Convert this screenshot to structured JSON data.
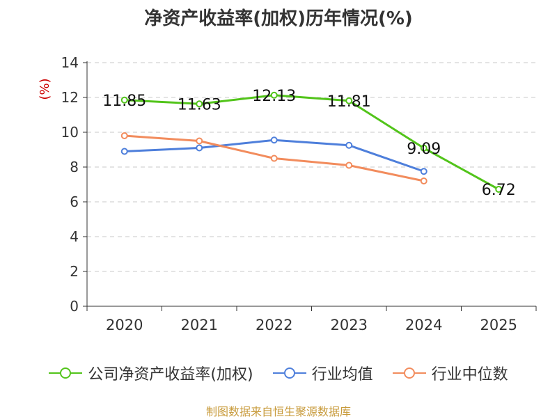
{
  "title": "净资产收益率(加权)历年情况(%)",
  "source": "制图数据来自恒生聚源数据库",
  "chart_data": {
    "type": "line",
    "title": "净资产收益率(加权)历年情况(%)",
    "ylabel": "(%)",
    "xlabel": "",
    "categories": [
      "2020",
      "2021",
      "2022",
      "2023",
      "2024",
      "2025"
    ],
    "ylim": [
      0,
      14
    ],
    "yticks": [
      0,
      2,
      4,
      6,
      8,
      10,
      12,
      14
    ],
    "grid": true,
    "legend_position": "bottom",
    "series": [
      {
        "name": "公司净资产收益率(加权)",
        "color": "#52c41a",
        "values": [
          11.85,
          11.63,
          12.13,
          11.81,
          9.09,
          6.72
        ],
        "labels": [
          "11.85",
          "11.63",
          "12.13",
          "11.81",
          "9.09",
          "6.72"
        ]
      },
      {
        "name": "行业均值",
        "color": "#4e7fdb",
        "values": [
          8.9,
          9.1,
          9.55,
          9.25,
          7.75,
          null
        ]
      },
      {
        "name": "行业中位数",
        "color": "#f28c5d",
        "values": [
          9.8,
          9.5,
          8.5,
          8.1,
          7.2,
          null
        ]
      }
    ]
  }
}
